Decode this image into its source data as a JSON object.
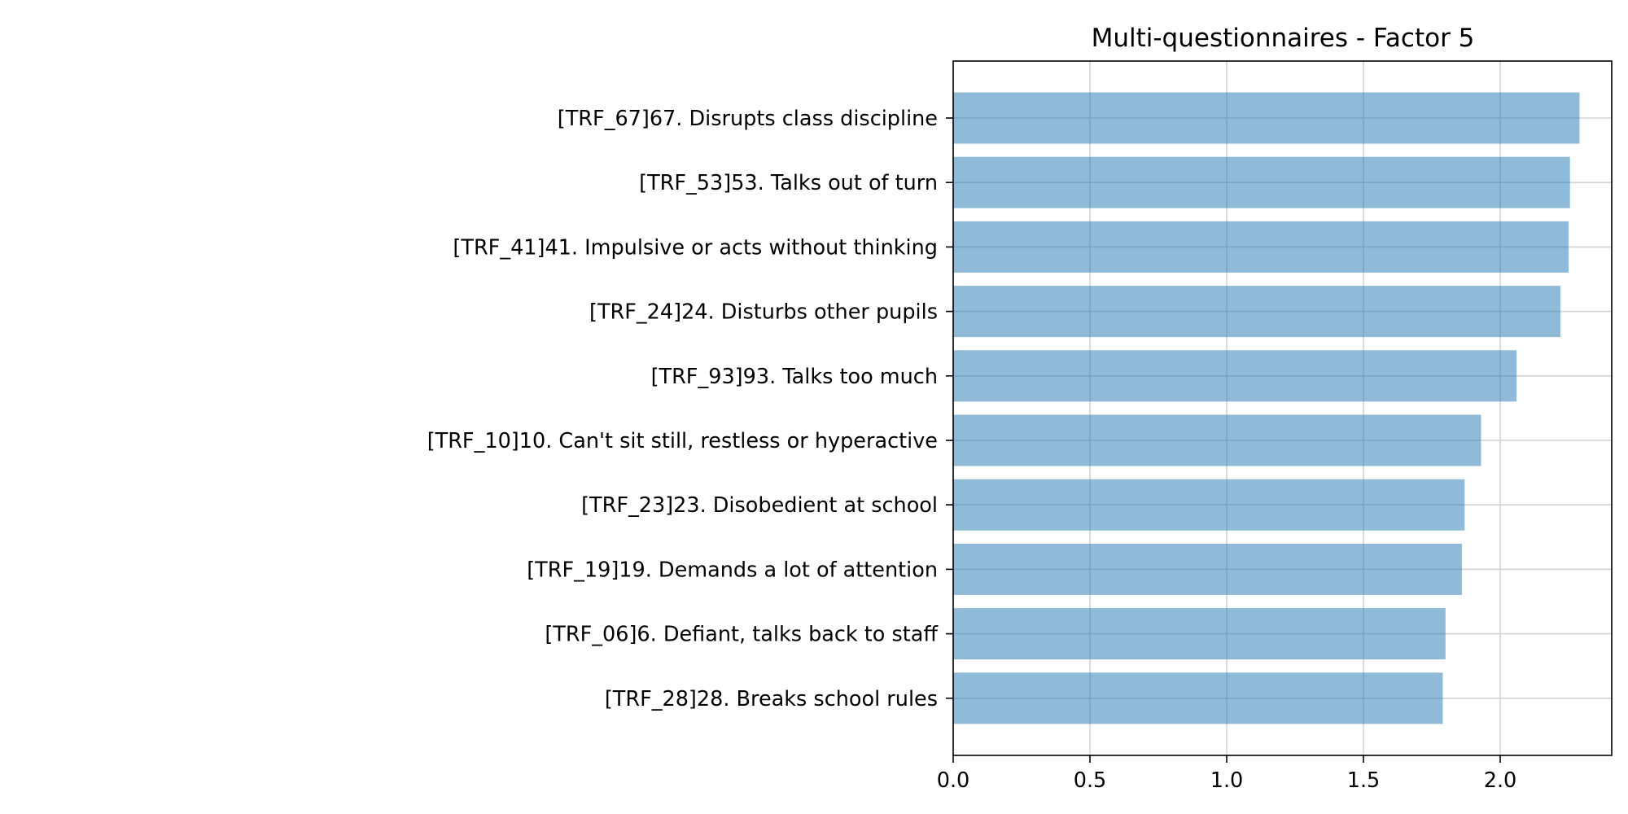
{
  "chart_data": {
    "type": "bar",
    "orientation": "horizontal",
    "title": "Multi-questionnaires - Factor 5",
    "xlabel": "",
    "ylabel": "",
    "categories": [
      "[TRF_67]67. Disrupts class discipline",
      "[TRF_53]53. Talks out of turn",
      "[TRF_41]41. Impulsive or acts without thinking",
      "[TRF_24]24. Disturbs other pupils",
      "[TRF_93]93. Talks too much",
      "[TRF_10]10. Can't sit still, restless or hyperactive",
      "[TRF_23]23. Disobedient at school",
      "[TRF_19]19. Demands a lot of attention",
      "[TRF_06]6. Defiant, talks back to staff",
      "[TRF_28]28. Breaks school rules"
    ],
    "values": [
      2.29,
      2.255,
      2.25,
      2.22,
      2.06,
      1.93,
      1.87,
      1.86,
      1.8,
      1.79
    ],
    "xlim": [
      0,
      2.4
    ],
    "xticks": [
      "0.0",
      "0.5",
      "1.0",
      "1.5",
      "2.0"
    ],
    "grid": true,
    "bar_color": "#1f77b4"
  }
}
